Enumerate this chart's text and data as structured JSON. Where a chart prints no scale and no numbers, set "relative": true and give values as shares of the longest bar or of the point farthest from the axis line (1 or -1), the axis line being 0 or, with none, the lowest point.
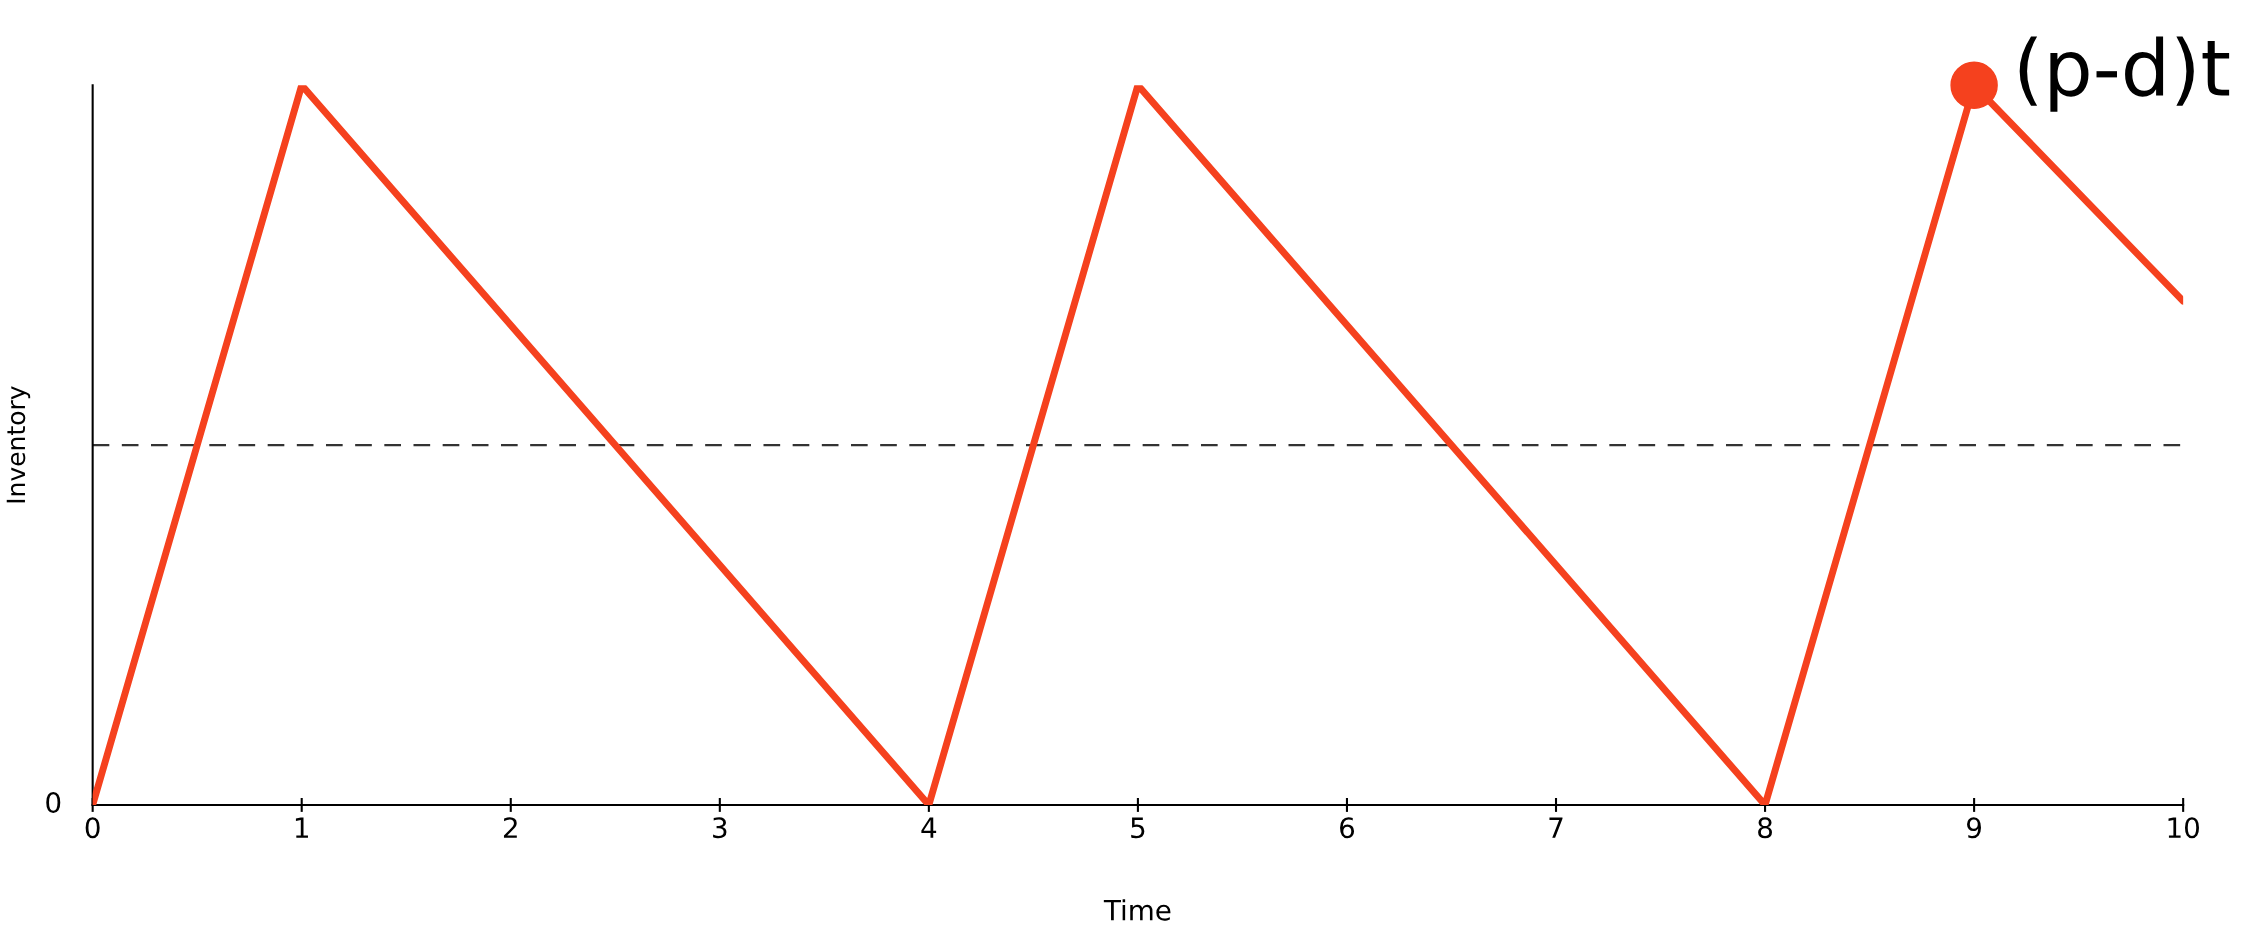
{
  "chart_data": {
    "type": "line",
    "xlabel": "Time",
    "ylabel": "Inventory",
    "relative": true,
    "xlim": [
      0,
      10
    ],
    "xticks": [
      0,
      1,
      2,
      3,
      4,
      5,
      6,
      7,
      8,
      9,
      10
    ],
    "grid": false,
    "legend": false,
    "series": [
      {
        "type": "line",
        "color": "#f5411e",
        "x": [
          0,
          1,
          4,
          5,
          8,
          9,
          10
        ],
        "values": [
          0,
          1,
          0,
          1,
          0,
          1,
          0.7
        ],
        "marker": "none",
        "line_style": "solid"
      },
      {
        "type": "scatter",
        "color": "#f5411e",
        "x": [
          9
        ],
        "values": [
          1
        ],
        "marker": "circle"
      }
    ],
    "ref_lines": [
      {
        "axis": "y",
        "value": 0.5,
        "color": "#333333",
        "line_style": "dashed"
      }
    ],
    "annotations": [
      {
        "text": "(p-d)t",
        "x": 9,
        "y": 1
      },
      {
        "text": "0",
        "x": 0,
        "y": 0
      }
    ]
  }
}
